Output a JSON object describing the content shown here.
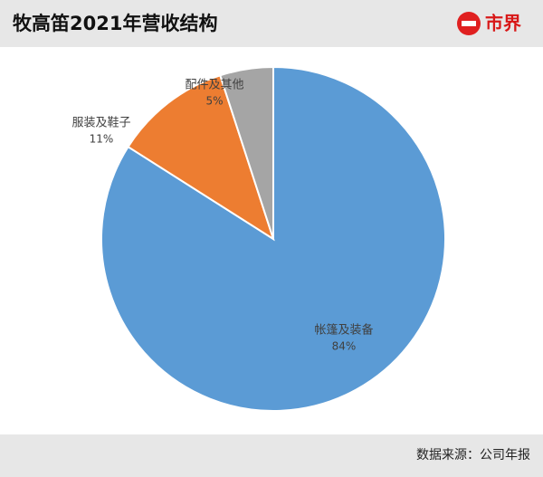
{
  "logo": "市界",
  "chart_data": {
    "type": "pie",
    "title": "牧高笛2021年营收结构",
    "categories": [
      "帐篷及装备",
      "服装及鞋子",
      "配件及其他"
    ],
    "values": [
      84,
      11,
      5
    ],
    "value_labels": [
      "84%",
      "11%",
      "5%"
    ],
    "colors": [
      "#5b9bd5",
      "#ed7d31",
      "#a5a5a5"
    ],
    "source": "数据来源：公司年报"
  }
}
